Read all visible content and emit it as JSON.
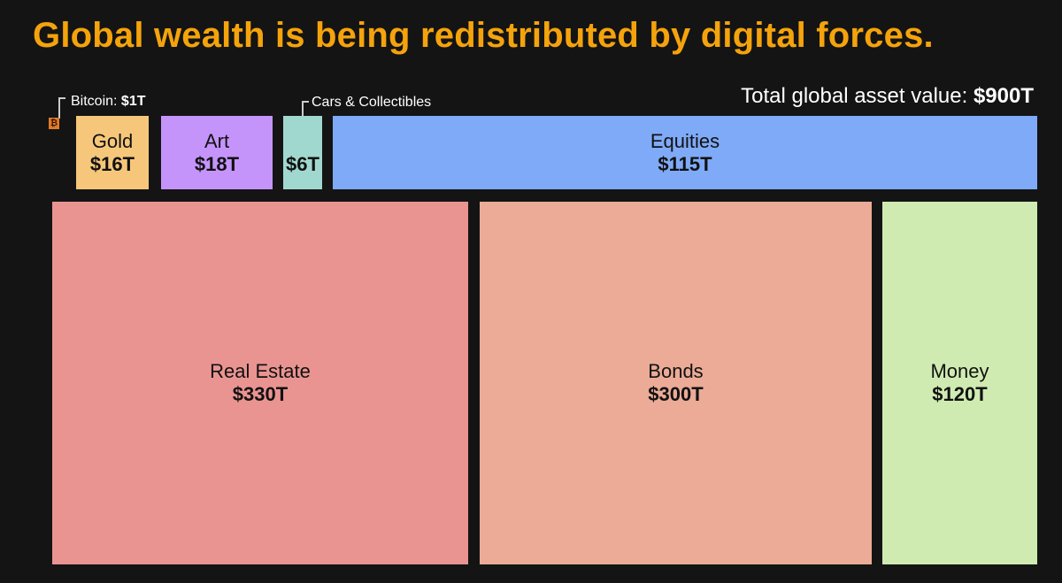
{
  "title": "Global wealth is being redistributed by digital forces.",
  "total": {
    "label": "Total global asset value: ",
    "value": "$900T"
  },
  "colors": {
    "title": "#f5a30c",
    "bitcoin": "#e07b2a",
    "gold": "#f6c77a",
    "art": "#c594fb",
    "cars": "#a0d8cf",
    "equities": "#7faaf7",
    "real_estate": "#ea9491",
    "bonds": "#ebab96",
    "money": "#d0ebb2"
  },
  "callouts": {
    "bitcoin": {
      "label": "Bitcoin: ",
      "value": "$1T"
    },
    "cars": {
      "label": "Cars & Collectibles"
    }
  },
  "boxes": {
    "gold": {
      "name": "Gold",
      "value": "$16T"
    },
    "art": {
      "name": "Art",
      "value": "$18T"
    },
    "cars": {
      "value": "$6T"
    },
    "equities": {
      "name": "Equities",
      "value": "$115T"
    },
    "real_estate": {
      "name": "Real Estate",
      "value": "$330T"
    },
    "bonds": {
      "name": "Bonds",
      "value": "$300T"
    },
    "money": {
      "name": "Money",
      "value": "$120T"
    }
  },
  "chart_data": {
    "type": "treemap",
    "title": "Global wealth is being redistributed by digital forces.",
    "total": 900,
    "unit": "T",
    "categories": [
      "Bitcoin",
      "Gold",
      "Art",
      "Cars & Collectibles",
      "Equities",
      "Real Estate",
      "Bonds",
      "Money"
    ],
    "values": [
      1,
      16,
      18,
      6,
      115,
      330,
      300,
      120
    ]
  }
}
